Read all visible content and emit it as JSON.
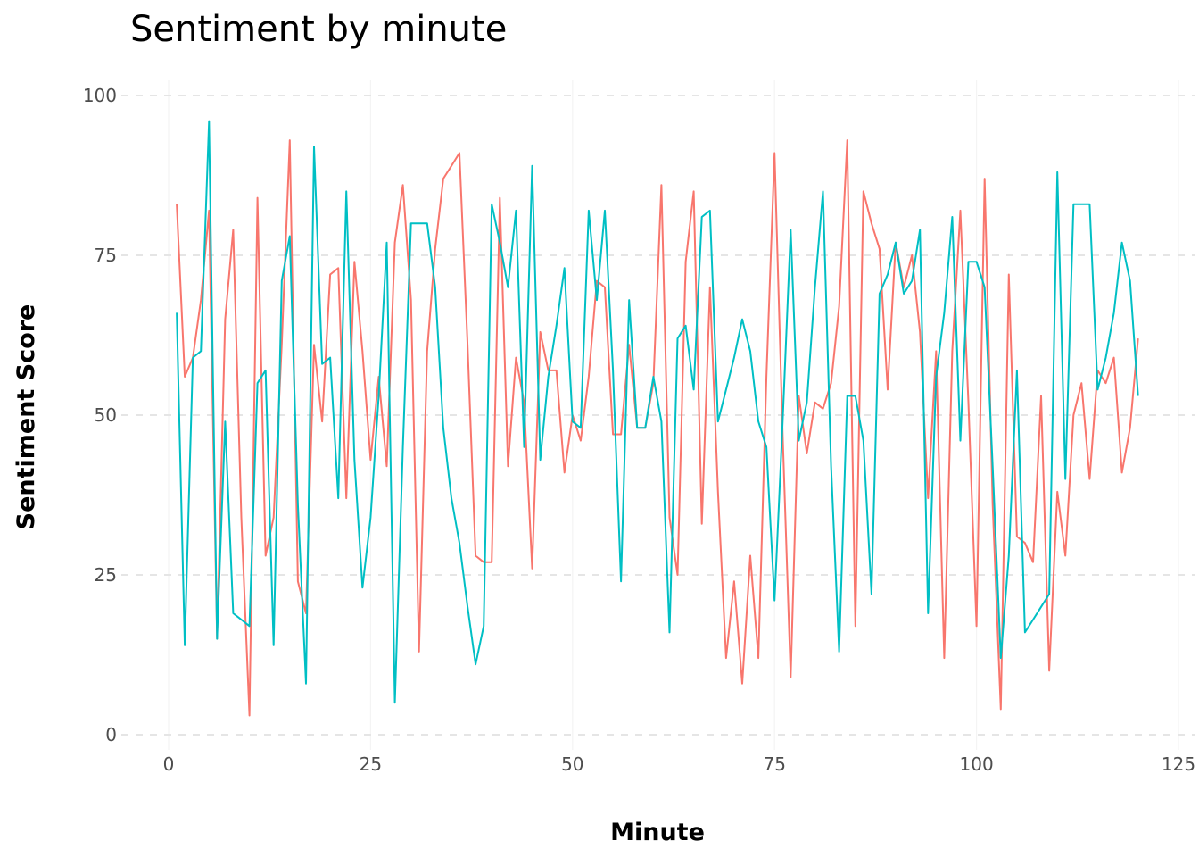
{
  "chart_data": {
    "type": "line",
    "title": "Sentiment by minute",
    "xlabel": "Minute",
    "ylabel": "Sentiment Score",
    "xlim": [
      -5,
      125
    ],
    "ylim": [
      0,
      100
    ],
    "x_ticks": [
      0,
      25,
      50,
      75,
      100,
      125
    ],
    "y_ticks": [
      0,
      25,
      50,
      75,
      100
    ],
    "grid": true,
    "legend": "none",
    "series": [
      {
        "color": "#f8766d",
        "x": [
          1,
          2,
          3,
          4,
          5,
          6,
          7,
          8,
          9,
          10,
          11,
          12,
          13,
          14,
          15,
          16,
          17,
          18,
          19,
          20,
          21,
          22,
          23,
          24,
          25,
          26,
          27,
          28,
          29,
          30,
          31,
          32,
          33,
          34,
          35,
          36,
          37,
          38,
          39,
          40,
          41,
          42,
          43,
          44,
          45,
          46,
          47,
          48,
          49,
          50,
          51,
          52,
          53,
          54,
          55,
          56,
          57,
          58,
          59,
          60,
          61,
          62,
          63,
          64,
          65,
          66,
          67,
          68,
          69,
          70,
          71,
          72,
          73,
          74,
          75,
          76,
          77,
          78,
          79,
          80,
          81,
          82,
          83,
          84,
          85,
          86,
          87,
          88,
          89,
          90,
          91,
          92,
          93,
          94,
          95,
          96,
          97,
          98,
          99,
          100,
          101,
          102,
          103,
          104,
          105,
          106,
          107,
          108,
          109,
          110,
          111,
          112,
          113,
          114,
          115,
          116,
          117,
          118,
          119,
          120
        ],
        "values": [
          83,
          56,
          59,
          68,
          82,
          15,
          65,
          79,
          34,
          3,
          84,
          28,
          34,
          61,
          93,
          24,
          19,
          61,
          49,
          72,
          73,
          37,
          74,
          60,
          43,
          56,
          42,
          77,
          86,
          68,
          13,
          60,
          76,
          87,
          89,
          91,
          61,
          28,
          27,
          27,
          84,
          42,
          59,
          52,
          26,
          63,
          57,
          57,
          41,
          50,
          46,
          56,
          71,
          70,
          47,
          47,
          61,
          48,
          48,
          55,
          86,
          34,
          25,
          74,
          85,
          33,
          70,
          38,
          12,
          24,
          8,
          28,
          12,
          56,
          91,
          47,
          9,
          53,
          44,
          52,
          51,
          55,
          67,
          93,
          17,
          85,
          80,
          76,
          54,
          77,
          70,
          75,
          63,
          37,
          60,
          12,
          60,
          82,
          52,
          17,
          87,
          36,
          4,
          72,
          31,
          30,
          27,
          53,
          10,
          38,
          28,
          50,
          55,
          40,
          57,
          55,
          59,
          41,
          48,
          62
        ]
      },
      {
        "color": "#00bfc4",
        "x": [
          1,
          2,
          3,
          4,
          5,
          6,
          7,
          8,
          9,
          10,
          11,
          12,
          13,
          14,
          15,
          16,
          17,
          18,
          19,
          20,
          21,
          22,
          23,
          24,
          25,
          26,
          27,
          28,
          29,
          30,
          31,
          32,
          33,
          34,
          35,
          36,
          37,
          38,
          39,
          40,
          41,
          42,
          43,
          44,
          45,
          46,
          47,
          48,
          49,
          50,
          51,
          52,
          53,
          54,
          55,
          56,
          57,
          58,
          59,
          60,
          61,
          62,
          63,
          64,
          65,
          66,
          67,
          68,
          69,
          70,
          71,
          72,
          73,
          74,
          75,
          76,
          77,
          78,
          79,
          80,
          81,
          82,
          83,
          84,
          85,
          86,
          87,
          88,
          89,
          90,
          91,
          92,
          93,
          94,
          95,
          96,
          97,
          98,
          99,
          100,
          101,
          102,
          103,
          104,
          105,
          106,
          107,
          108,
          109,
          110,
          111,
          112,
          113,
          114,
          115,
          116,
          117,
          118,
          119,
          120
        ],
        "values": [
          66,
          14,
          59,
          60,
          96,
          15,
          49,
          19,
          18,
          17,
          55,
          57,
          14,
          71,
          78,
          36,
          8,
          92,
          58,
          59,
          37,
          85,
          43,
          23,
          34,
          53,
          77,
          5,
          45,
          80,
          80,
          80,
          70,
          48,
          37,
          30,
          20,
          11,
          17,
          83,
          77,
          70,
          82,
          45,
          89,
          43,
          56,
          64,
          73,
          49,
          48,
          82,
          68,
          82,
          57,
          24,
          68,
          48,
          48,
          56,
          49,
          16,
          62,
          64,
          54,
          81,
          82,
          49,
          54,
          59,
          65,
          60,
          49,
          45,
          21,
          49,
          79,
          46,
          52,
          70,
          85,
          42,
          13,
          53,
          53,
          46,
          22,
          69,
          72,
          77,
          69,
          71,
          79,
          19,
          56,
          66,
          81,
          46,
          74,
          74,
          70,
          42,
          12,
          28,
          57,
          16,
          18,
          20,
          22,
          88,
          40,
          83,
          83,
          83,
          54,
          59,
          66,
          77,
          71,
          53
        ]
      }
    ]
  }
}
